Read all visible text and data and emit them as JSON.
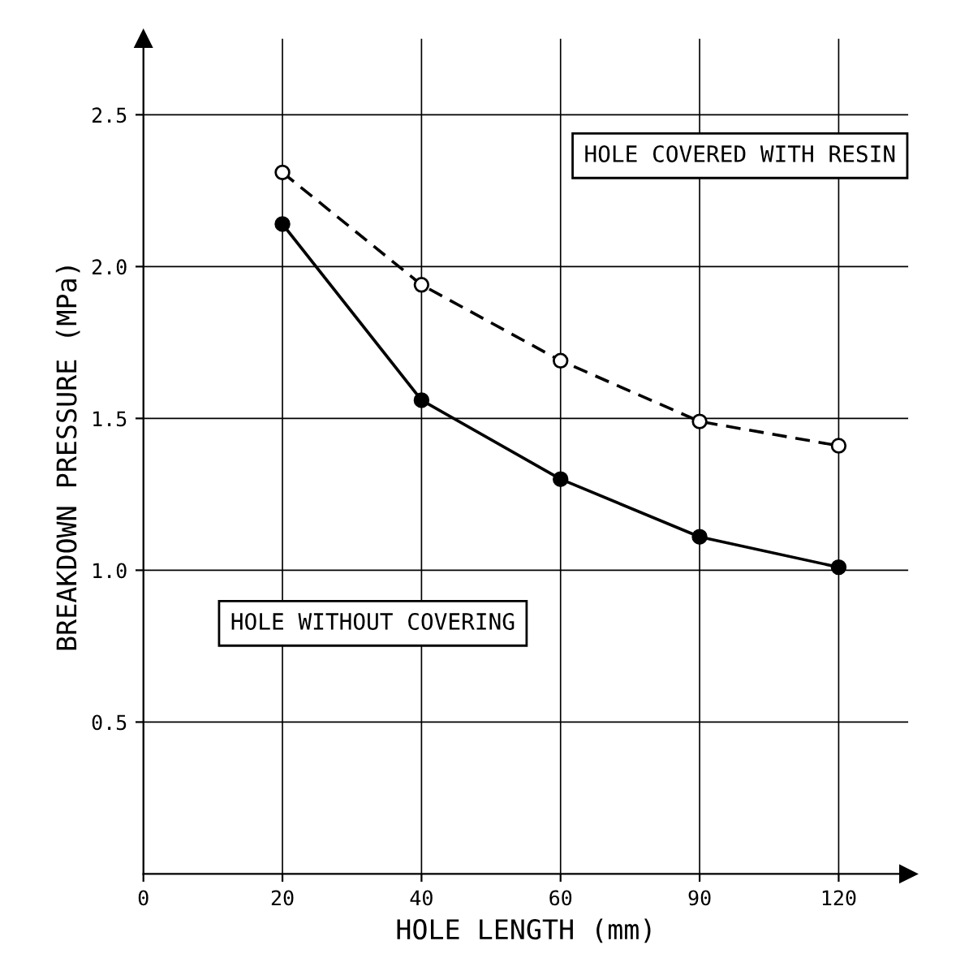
{
  "chart_data": {
    "type": "line",
    "xlabel": "HOLE LENGTH (mm)",
    "ylabel": "BREAKDOWN PRESSURE (MPa)",
    "categories": [
      "0",
      "20",
      "40",
      "60",
      "90",
      "120"
    ],
    "series": [
      {
        "name": "HOLE COVERED WITH RESIN",
        "color": "#000000",
        "line_style": "dashed",
        "marker": "circle",
        "values": [
          null,
          2.31,
          1.94,
          1.69,
          1.49,
          1.41
        ]
      },
      {
        "name": "HOLE WITHOUT COVERING",
        "color": "#000000",
        "line_style": "solid",
        "marker": "circle",
        "values": [
          null,
          2.14,
          1.56,
          1.3,
          1.11,
          1.01
        ]
      }
    ],
    "ylim": [
      0,
      2.75
    ],
    "yticks": [
      0.5,
      {
        "value": 1,
        "label": "1.0"
      },
      1.5,
      {
        "value": 2,
        "label": "2.0"
      },
      2.5
    ],
    "grid": true,
    "legend": false
  }
}
